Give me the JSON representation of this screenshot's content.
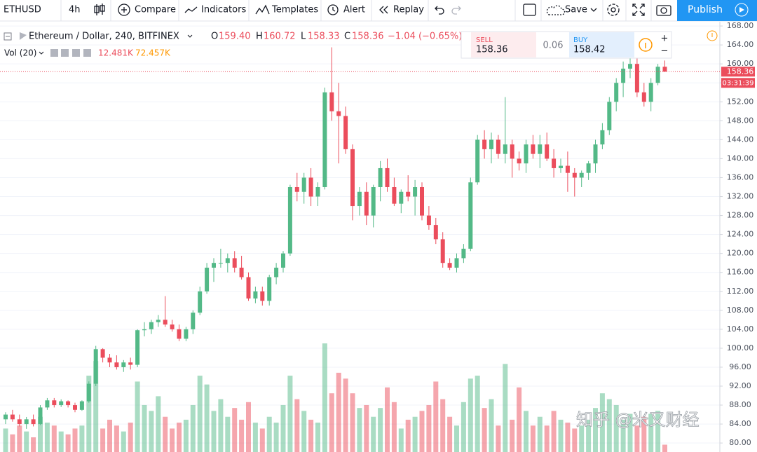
{
  "toolbar": {
    "symbol": "ETHUSD",
    "interval": "4h",
    "compare": "Compare",
    "indicators": "Indicators",
    "templates": "Templates",
    "alert": "Alert",
    "replay": "Replay",
    "save": "Save",
    "publish": "Publish"
  },
  "chart_data": {
    "type": "candlestick",
    "legend": {
      "title": "Ethereum / Dollar, 240, BITFINEX",
      "o_key": "O",
      "open": "159.40",
      "h_key": "H",
      "high": "160.72",
      "l_key": "L",
      "low": "158.33",
      "c_key": "C",
      "close": "158.36",
      "change": "−1.04 (−0.65%)"
    },
    "volume_legend": {
      "title": "Vol (20)",
      "value": "12.481K",
      "ma": "72.457K"
    },
    "trade": {
      "sell_label": "SELL",
      "sell": "158.36",
      "spread": "0.06",
      "buy_label": "BUY",
      "buy": "158.42"
    },
    "last_price_label": "158.36",
    "countdown": "03:31:39",
    "watermark": "知乎 @米又财经",
    "up_color": "#53b987",
    "down_color": "#eb4d5c",
    "open": [
      85,
      86,
      85,
      84,
      85,
      84,
      87.5,
      89,
      88,
      88.8,
      88,
      87,
      88.8,
      92.5,
      99.8,
      98,
      97,
      96,
      97,
      96.5,
      103.8,
      104,
      105.5,
      106,
      105,
      104,
      102,
      104,
      107.5,
      112,
      117,
      118,
      118,
      119,
      117,
      115,
      110.5,
      112,
      110,
      115,
      117,
      120,
      134,
      133,
      136,
      132,
      134,
      154,
      150,
      149,
      142,
      130,
      133,
      128,
      134,
      138,
      134,
      130.5,
      133,
      132,
      134,
      128,
      126,
      123,
      118,
      117,
      119,
      121,
      135,
      144,
      142,
      144,
      141,
      143,
      140,
      139,
      143,
      141,
      143,
      140,
      138,
      138.5,
      137,
      136,
      137,
      139,
      143,
      146,
      152,
      156,
      159,
      160,
      154,
      152,
      156,
      159.4
    ],
    "high": [
      86.5,
      87,
      86,
      85.5,
      86,
      88,
      89.5,
      89.5,
      89.2,
      89,
      88.5,
      89,
      93,
      100.5,
      100,
      98.8,
      98.5,
      97.5,
      98,
      104,
      105.5,
      106,
      107,
      111,
      106,
      105,
      104.5,
      108,
      113,
      118,
      119,
      121,
      120,
      120.5,
      119.5,
      116,
      113,
      113,
      115.5,
      118,
      120.5,
      134.5,
      137,
      137,
      138,
      135,
      155,
      163.5,
      156,
      151,
      143,
      134,
      135,
      134.5,
      139.5,
      140,
      136,
      133.5,
      136.5,
      135.5,
      135,
      130,
      127.5,
      124.5,
      119,
      120,
      122,
      136,
      145,
      146,
      145.5,
      145,
      153,
      144,
      141.5,
      144,
      145,
      145,
      145.5,
      142,
      140,
      141.5,
      138,
      137.5,
      139.5,
      144,
      147.5,
      153,
      157,
      160.5,
      162,
      161.5,
      156,
      157,
      160,
      160.72
    ],
    "low": [
      84,
      84.5,
      83.5,
      83,
      83.5,
      83.8,
      87,
      87.5,
      87.6,
      87.5,
      86.5,
      86.8,
      88.5,
      92,
      97,
      96,
      95.5,
      95,
      95.5,
      96,
      102.5,
      103,
      104.5,
      104.5,
      103.5,
      101.5,
      101.5,
      103,
      107,
      111.5,
      114,
      117,
      116,
      116,
      114.5,
      110,
      109.5,
      109,
      109,
      113.5,
      116,
      119.5,
      131,
      130.5,
      130,
      130,
      133.5,
      148,
      139,
      141,
      127,
      128,
      126,
      125.5,
      131,
      133,
      130,
      128.5,
      131,
      128,
      127,
      125,
      122,
      117,
      116.5,
      116,
      118,
      120.5,
      134.5,
      140,
      139,
      140,
      139,
      136,
      137.5,
      137,
      140,
      138,
      139.5,
      136,
      137,
      133,
      132,
      134,
      135.5,
      137,
      142,
      145,
      150,
      153,
      157,
      153,
      151,
      150,
      155.5,
      158.33
    ],
    "close": [
      86,
      85,
      84,
      85,
      84,
      87.5,
      89,
      88,
      88.8,
      88,
      87,
      88.8,
      92.5,
      99.8,
      98,
      97,
      96,
      97,
      96.5,
      103.8,
      104,
      105.5,
      106,
      105,
      104,
      102,
      104,
      107.5,
      112,
      117,
      118,
      118,
      119,
      117,
      115,
      110.5,
      112,
      110,
      115,
      117,
      120,
      134,
      133,
      136,
      132,
      134,
      154,
      150,
      149,
      142,
      130,
      133,
      128,
      134,
      138,
      134,
      130.5,
      133,
      132,
      134,
      128,
      126,
      123,
      118,
      117,
      119,
      121,
      135,
      144,
      142,
      144,
      141,
      143,
      140,
      139,
      143,
      141,
      143,
      140,
      138,
      138.5,
      137,
      136,
      137,
      139,
      143,
      146,
      152,
      156,
      159,
      160,
      154,
      152,
      156,
      159.4,
      158.36
    ],
    "volume": [
      40,
      30,
      45,
      35,
      25,
      60,
      50,
      45,
      35,
      30,
      40,
      45,
      130,
      155,
      40,
      55,
      45,
      35,
      50,
      120,
      80,
      70,
      95,
      60,
      40,
      50,
      55,
      80,
      130,
      115,
      70,
      90,
      60,
      75,
      55,
      85,
      50,
      40,
      60,
      50,
      80,
      130,
      90,
      70,
      55,
      50,
      185,
      100,
      135,
      125,
      100,
      75,
      80,
      60,
      75,
      110,
      85,
      40,
      55,
      60,
      70,
      80,
      120,
      90,
      60,
      45,
      85,
      125,
      130,
      75,
      90,
      45,
      150,
      55,
      110,
      70,
      45,
      60,
      45,
      70,
      55,
      50,
      40,
      45,
      55,
      75,
      100,
      90,
      80,
      55,
      65,
      45,
      60,
      65,
      70,
      12.481
    ],
    "ylim": [
      78.1,
      168.9
    ],
    "yticks": [
      {
        "value": 80,
        "label": "80.00"
      },
      {
        "value": 84,
        "label": "84.00"
      },
      {
        "value": 88,
        "label": "88.00"
      },
      {
        "value": 92,
        "label": "92.00"
      },
      {
        "value": 96,
        "label": "96.00"
      },
      {
        "value": 100,
        "label": "100.00"
      },
      {
        "value": 104,
        "label": "104.00"
      },
      {
        "value": 108,
        "label": "108.00"
      },
      {
        "value": 112,
        "label": "112.00"
      },
      {
        "value": 116,
        "label": "116.00"
      },
      {
        "value": 120,
        "label": "120.00"
      },
      {
        "value": 124,
        "label": "124.00"
      },
      {
        "value": 128,
        "label": "128.00"
      },
      {
        "value": 132,
        "label": "132.00"
      },
      {
        "value": 136,
        "label": "136.00"
      },
      {
        "value": 140,
        "label": "140.00"
      },
      {
        "value": 144,
        "label": "144.00"
      },
      {
        "value": 148,
        "label": "148.00"
      },
      {
        "value": 152,
        "label": "152.00"
      },
      {
        "value": 156,
        "label": "156.00"
      },
      {
        "value": 160,
        "label": "160.00"
      },
      {
        "value": 164,
        "label": "164.00"
      },
      {
        "value": 168,
        "label": "168.00"
      }
    ],
    "last_price": 158.36,
    "grid": true
  }
}
